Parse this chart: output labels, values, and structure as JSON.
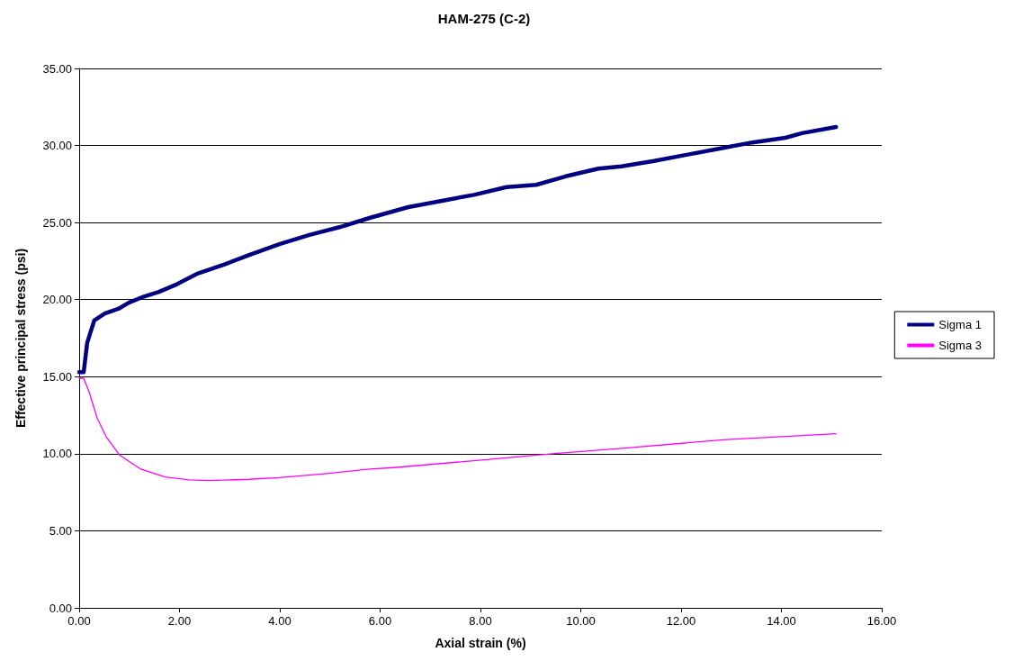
{
  "chart_data": {
    "type": "line",
    "title": "HAM-275 (C-2)",
    "xlabel": "Axial strain (%)",
    "ylabel": "Effective principal stress (psi)",
    "xlim": [
      0,
      16
    ],
    "ylim": [
      0,
      35
    ],
    "xticks": [
      {
        "value": 0,
        "label": "0.00"
      },
      {
        "value": 2,
        "label": "2.00"
      },
      {
        "value": 4,
        "label": "4.00"
      },
      {
        "value": 6,
        "label": "6.00"
      },
      {
        "value": 8,
        "label": "8.00"
      },
      {
        "value": 10,
        "label": "10.00"
      },
      {
        "value": 12,
        "label": "12.00"
      },
      {
        "value": 14,
        "label": "14.00"
      },
      {
        "value": 16,
        "label": "16.00"
      }
    ],
    "yticks": [
      {
        "value": 0,
        "label": "0.00"
      },
      {
        "value": 5,
        "label": "5.00"
      },
      {
        "value": 10,
        "label": "10.00"
      },
      {
        "value": 15,
        "label": "15.00"
      },
      {
        "value": 20,
        "label": "20.00"
      },
      {
        "value": 25,
        "label": "25.00"
      },
      {
        "value": 30,
        "label": "30.00"
      },
      {
        "value": 35,
        "label": "35.00"
      }
    ],
    "grid": "y",
    "legend": "right",
    "marker": "none",
    "line_style": "solid",
    "series": [
      {
        "name": "Sigma 1",
        "color": "#000080",
        "x": [
          0,
          0.09,
          0.16,
          0.3,
          0.51,
          0.78,
          0.99,
          1.29,
          1.59,
          1.95,
          2.37,
          2.91,
          3.39,
          3.99,
          4.59,
          5.19,
          5.79,
          6.56,
          7.21,
          7.87,
          8.52,
          9.11,
          9.7,
          10.35,
          10.81,
          11.46,
          12.11,
          12.77,
          13.42,
          14.08,
          14.41,
          15.09
        ],
        "values": [
          15.3,
          15.3,
          17.2,
          18.65,
          19.1,
          19.4,
          19.8,
          20.2,
          20.5,
          21.0,
          21.7,
          22.3,
          22.9,
          23.6,
          24.2,
          24.7,
          25.3,
          26.0,
          26.4,
          26.8,
          27.3,
          27.45,
          28.0,
          28.5,
          28.65,
          29.0,
          29.4,
          29.8,
          30.2,
          30.5,
          30.8,
          31.2
        ]
      },
      {
        "name": "Sigma 3",
        "color": "#ff00ff",
        "x": [
          0,
          0.09,
          0.21,
          0.36,
          0.54,
          0.81,
          1.23,
          1.71,
          2.19,
          2.61,
          3.39,
          3.99,
          4.89,
          5.79,
          6.27,
          7.87,
          9.43,
          10.87,
          12.83,
          15.09
        ],
        "values": [
          14.9,
          14.9,
          13.9,
          12.3,
          11.1,
          9.9,
          9.0,
          8.5,
          8.3,
          8.26,
          8.34,
          8.45,
          8.7,
          9.0,
          9.1,
          9.55,
          10.0,
          10.36,
          10.9,
          11.3
        ]
      }
    ]
  }
}
